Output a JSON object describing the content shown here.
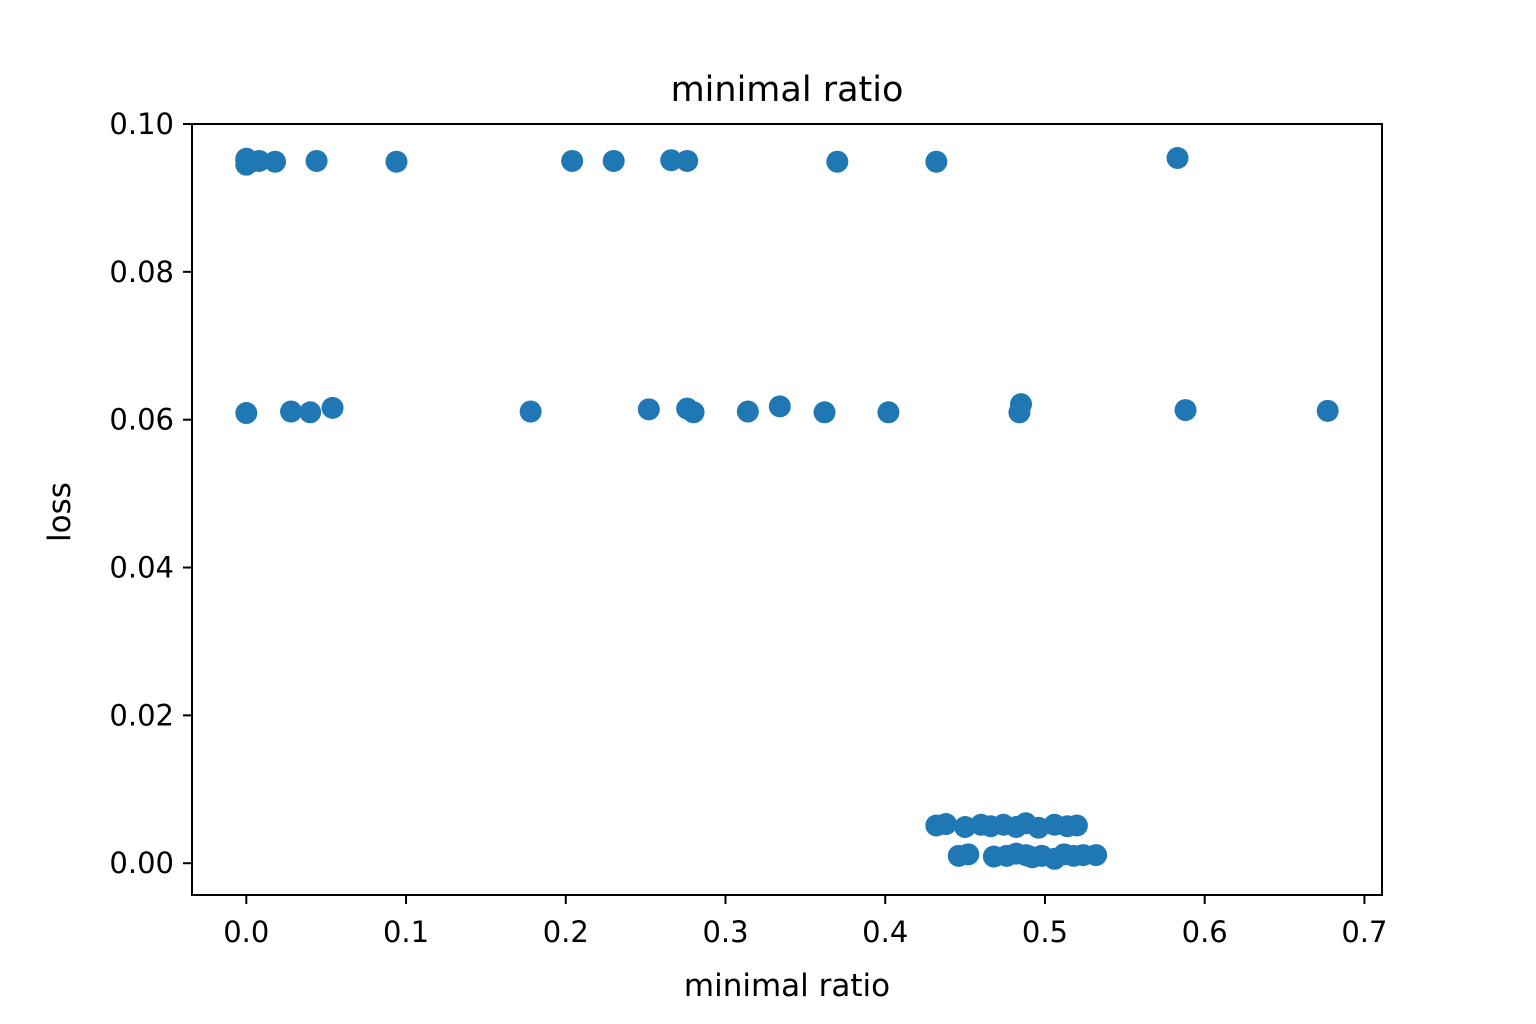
{
  "chart_data": {
    "type": "scatter",
    "title": "minimal ratio",
    "xlabel": "minimal ratio",
    "ylabel": "loss",
    "xlim": [
      -0.034,
      0.711
    ],
    "ylim": [
      -0.0043,
      0.1
    ],
    "xticks": [
      0.0,
      0.1,
      0.2,
      0.3,
      0.4,
      0.5,
      0.6,
      0.7
    ],
    "xtick_labels": [
      "0.0",
      "0.1",
      "0.2",
      "0.3",
      "0.4",
      "0.5",
      "0.6",
      "0.7"
    ],
    "yticks": [
      0.0,
      0.02,
      0.04,
      0.06,
      0.08,
      0.1
    ],
    "ytick_labels": [
      "0.00",
      "0.02",
      "0.04",
      "0.06",
      "0.08",
      "0.10"
    ],
    "grid": false,
    "legend": "none",
    "color": "#1f77b4",
    "series": [
      {
        "points": [
          [
            0.0,
            0.0945
          ],
          [
            0.0,
            0.0951
          ],
          [
            0.0,
            0.0953
          ],
          [
            0.002,
            0.0948
          ],
          [
            0.008,
            0.095
          ],
          [
            0.018,
            0.0949
          ],
          [
            0.044,
            0.095
          ],
          [
            0.094,
            0.0949
          ],
          [
            0.204,
            0.095
          ],
          [
            0.23,
            0.095
          ],
          [
            0.266,
            0.0951
          ],
          [
            0.276,
            0.095
          ],
          [
            0.37,
            0.0949
          ],
          [
            0.432,
            0.0949
          ],
          [
            0.583,
            0.0954
          ],
          [
            0.0,
            0.0609
          ],
          [
            0.028,
            0.0611
          ],
          [
            0.04,
            0.061
          ],
          [
            0.054,
            0.0616
          ],
          [
            0.178,
            0.0611
          ],
          [
            0.252,
            0.0614
          ],
          [
            0.276,
            0.0615
          ],
          [
            0.28,
            0.061
          ],
          [
            0.314,
            0.0611
          ],
          [
            0.334,
            0.0618
          ],
          [
            0.362,
            0.061
          ],
          [
            0.402,
            0.061
          ],
          [
            0.484,
            0.061
          ],
          [
            0.485,
            0.0621
          ],
          [
            0.588,
            0.0613
          ],
          [
            0.677,
            0.0612
          ],
          [
            0.432,
            0.0051
          ],
          [
            0.438,
            0.0053
          ],
          [
            0.45,
            0.0049
          ],
          [
            0.46,
            0.0052
          ],
          [
            0.466,
            0.005
          ],
          [
            0.474,
            0.0052
          ],
          [
            0.482,
            0.0049
          ],
          [
            0.488,
            0.0054
          ],
          [
            0.496,
            0.0048
          ],
          [
            0.506,
            0.0052
          ],
          [
            0.514,
            0.005
          ],
          [
            0.52,
            0.0051
          ],
          [
            0.446,
            0.001
          ],
          [
            0.452,
            0.0012
          ],
          [
            0.468,
            0.0009
          ],
          [
            0.476,
            0.001
          ],
          [
            0.482,
            0.0013
          ],
          [
            0.488,
            0.0011
          ],
          [
            0.492,
            0.0008
          ],
          [
            0.498,
            0.001
          ],
          [
            0.506,
            0.0006
          ],
          [
            0.512,
            0.0012
          ],
          [
            0.518,
            0.001
          ],
          [
            0.524,
            0.0011
          ],
          [
            0.532,
            0.0011
          ]
        ]
      }
    ]
  }
}
